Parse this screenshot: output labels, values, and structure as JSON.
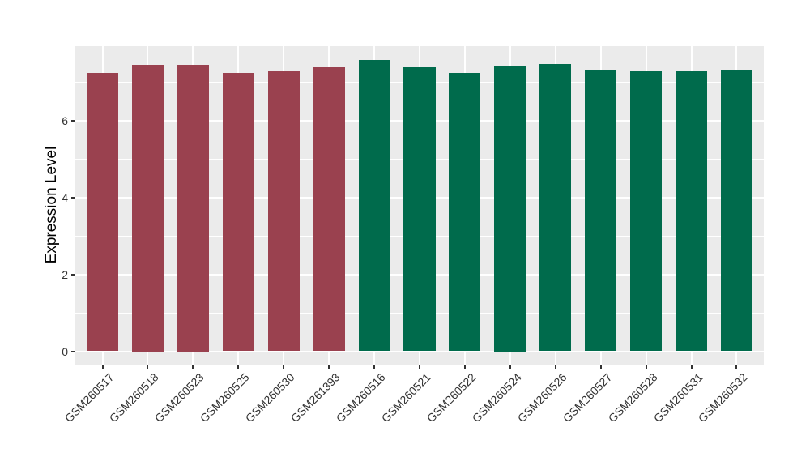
{
  "chart_data": {
    "type": "bar",
    "title": "",
    "xlabel": "",
    "ylabel": "Expression Level",
    "categories": [
      "GSM260517",
      "GSM260518",
      "GSM260523",
      "GSM260525",
      "GSM260530",
      "GSM261393",
      "GSM260516",
      "GSM260521",
      "GSM260522",
      "GSM260524",
      "GSM260526",
      "GSM260527",
      "GSM260528",
      "GSM260531",
      "GSM260532"
    ],
    "values": [
      7.24,
      7.45,
      7.45,
      7.24,
      7.28,
      7.38,
      7.56,
      7.37,
      7.24,
      7.4,
      7.47,
      7.32,
      7.28,
      7.29,
      7.32
    ],
    "groups": [
      0,
      0,
      0,
      0,
      0,
      0,
      1,
      1,
      1,
      1,
      1,
      1,
      1,
      1,
      1
    ],
    "group_colors": [
      "#9A414F",
      "#006B4C"
    ],
    "yticks": [
      0,
      2,
      4,
      6
    ],
    "yticks_minor": [
      1,
      3,
      5,
      7
    ],
    "ylim": [
      -0.4,
      7.95
    ],
    "grid": "on",
    "legend": "none",
    "panel_bg": "#EBEBEB",
    "grid_color": "#FFFFFF",
    "tick_label_color": "#333333",
    "axis_title_color": "#000000"
  }
}
